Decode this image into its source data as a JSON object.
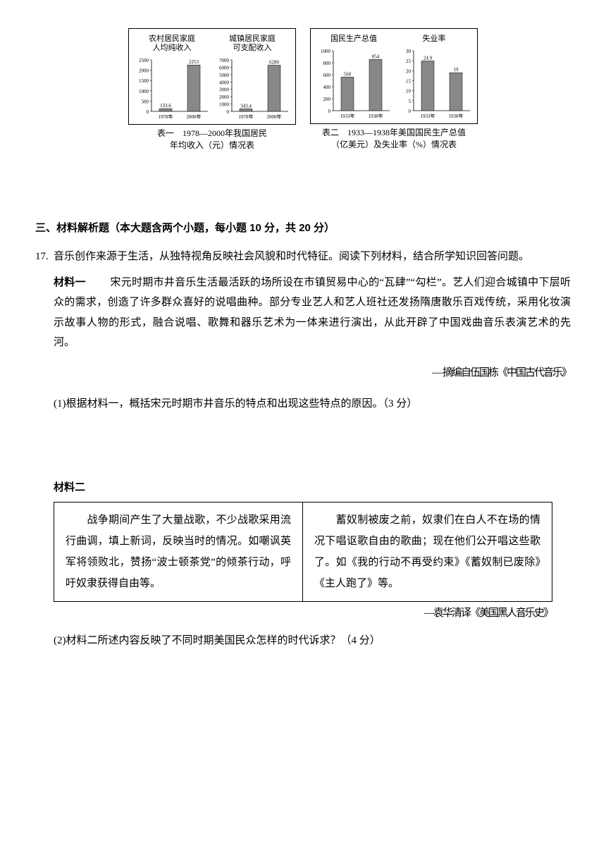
{
  "charts": {
    "left_group": {
      "sub_charts": [
        {
          "title_line1": "农村居民家庭",
          "title_line2": "人均纯收入",
          "categories": [
            "1978年",
            "2000年"
          ],
          "values": [
            133.6,
            2253
          ],
          "value_labels": [
            "133.6",
            "2253"
          ],
          "y_max": 2500,
          "y_tick": 500,
          "bar_color": "#888888",
          "bg": "#ffffff",
          "axis_color": "#000000",
          "font_size": 9
        },
        {
          "title_line1": "城镇居民家庭",
          "title_line2": "可支配收入",
          "categories": [
            "1978年",
            "2000年"
          ],
          "values": [
            343.4,
            6280
          ],
          "value_labels": [
            "343.4",
            "6280"
          ],
          "y_max": 7000,
          "y_tick": 1000,
          "bar_color": "#888888",
          "bg": "#ffffff",
          "axis_color": "#000000",
          "font_size": 9
        }
      ],
      "caption_line1": "表一　1978—2000年我国居民",
      "caption_line2": "年均收入（元）情况表"
    },
    "right_group": {
      "sub_charts": [
        {
          "title_line1": "国民生产总值",
          "title_line2": "",
          "categories": [
            "1933年",
            "1938年"
          ],
          "values": [
            560,
            854
          ],
          "value_labels": [
            "560",
            "854"
          ],
          "y_max": 1000,
          "y_tick": 200,
          "bar_color": "#888888",
          "bg": "#ffffff",
          "axis_color": "#000000",
          "font_size": 9
        },
        {
          "title_line1": "失业率",
          "title_line2": "",
          "categories": [
            "1933年",
            "1938年"
          ],
          "values": [
            24.9,
            19
          ],
          "value_labels": [
            "24.9",
            "19"
          ],
          "y_max": 30,
          "y_tick": 5,
          "bar_color": "#888888",
          "bg": "#ffffff",
          "axis_color": "#000000",
          "font_size": 9
        }
      ],
      "caption_line1": "表二　1933—1938年美国国民生产总值",
      "caption_line2": "（亿美元）及失业率（%）情况表"
    }
  },
  "section_title": "三、材料解析题（本大题含两个小题，每小题 10 分，共 20 分）",
  "q17": {
    "num": "17.",
    "intro": "音乐创作来源于生活，从独特视角反映社会风貌和时代特征。阅读下列材料，结合所学知识回答问题。",
    "material1": {
      "label": "材料一",
      "text": "　　宋元时期市井音乐生活最活跃的场所设在市镇贸易中心的“瓦肆”“勾栏”。艺人们迎合城镇中下层听众的需求，创造了许多群众喜好的说唱曲种。部分专业艺人和艺人班社还发扬隋唐散乐百戏传统，采用化妆演示故事人物的形式，融合说唱、歌舞和器乐艺术为一体来进行演出，从此开辟了中国戏曲音乐表演艺术的先河。",
      "source": "— 摘编自伍国栋《中国古代音乐》"
    },
    "sub1": "(1)根据材料一，概括宋元时期市井音乐的特点和出现这些特点的原因。（3 分）",
    "material2": {
      "label": "材料二",
      "left": "　　战争期间产生了大量战歌，不少战歌采用流行曲调，填上新词，反映当时的情况。如嘲讽英军将领败北，赞扬“波士顿茶党”的倾茶行动，呼吁奴隶获得自由等。",
      "right": "　　蓄奴制被废之前，奴隶们在白人不在场的情况下唱讴歌自由的歌曲；现在他们公开唱这些歌了。如《我的行动不再受约束》《蓄奴制已废除》《主人跑了》等。",
      "source": "—袁华清译《美国黑人音乐史》"
    },
    "sub2": "(2)材料二所述内容反映了不同时期美国民众怎样的时代诉求？（4 分）"
  }
}
